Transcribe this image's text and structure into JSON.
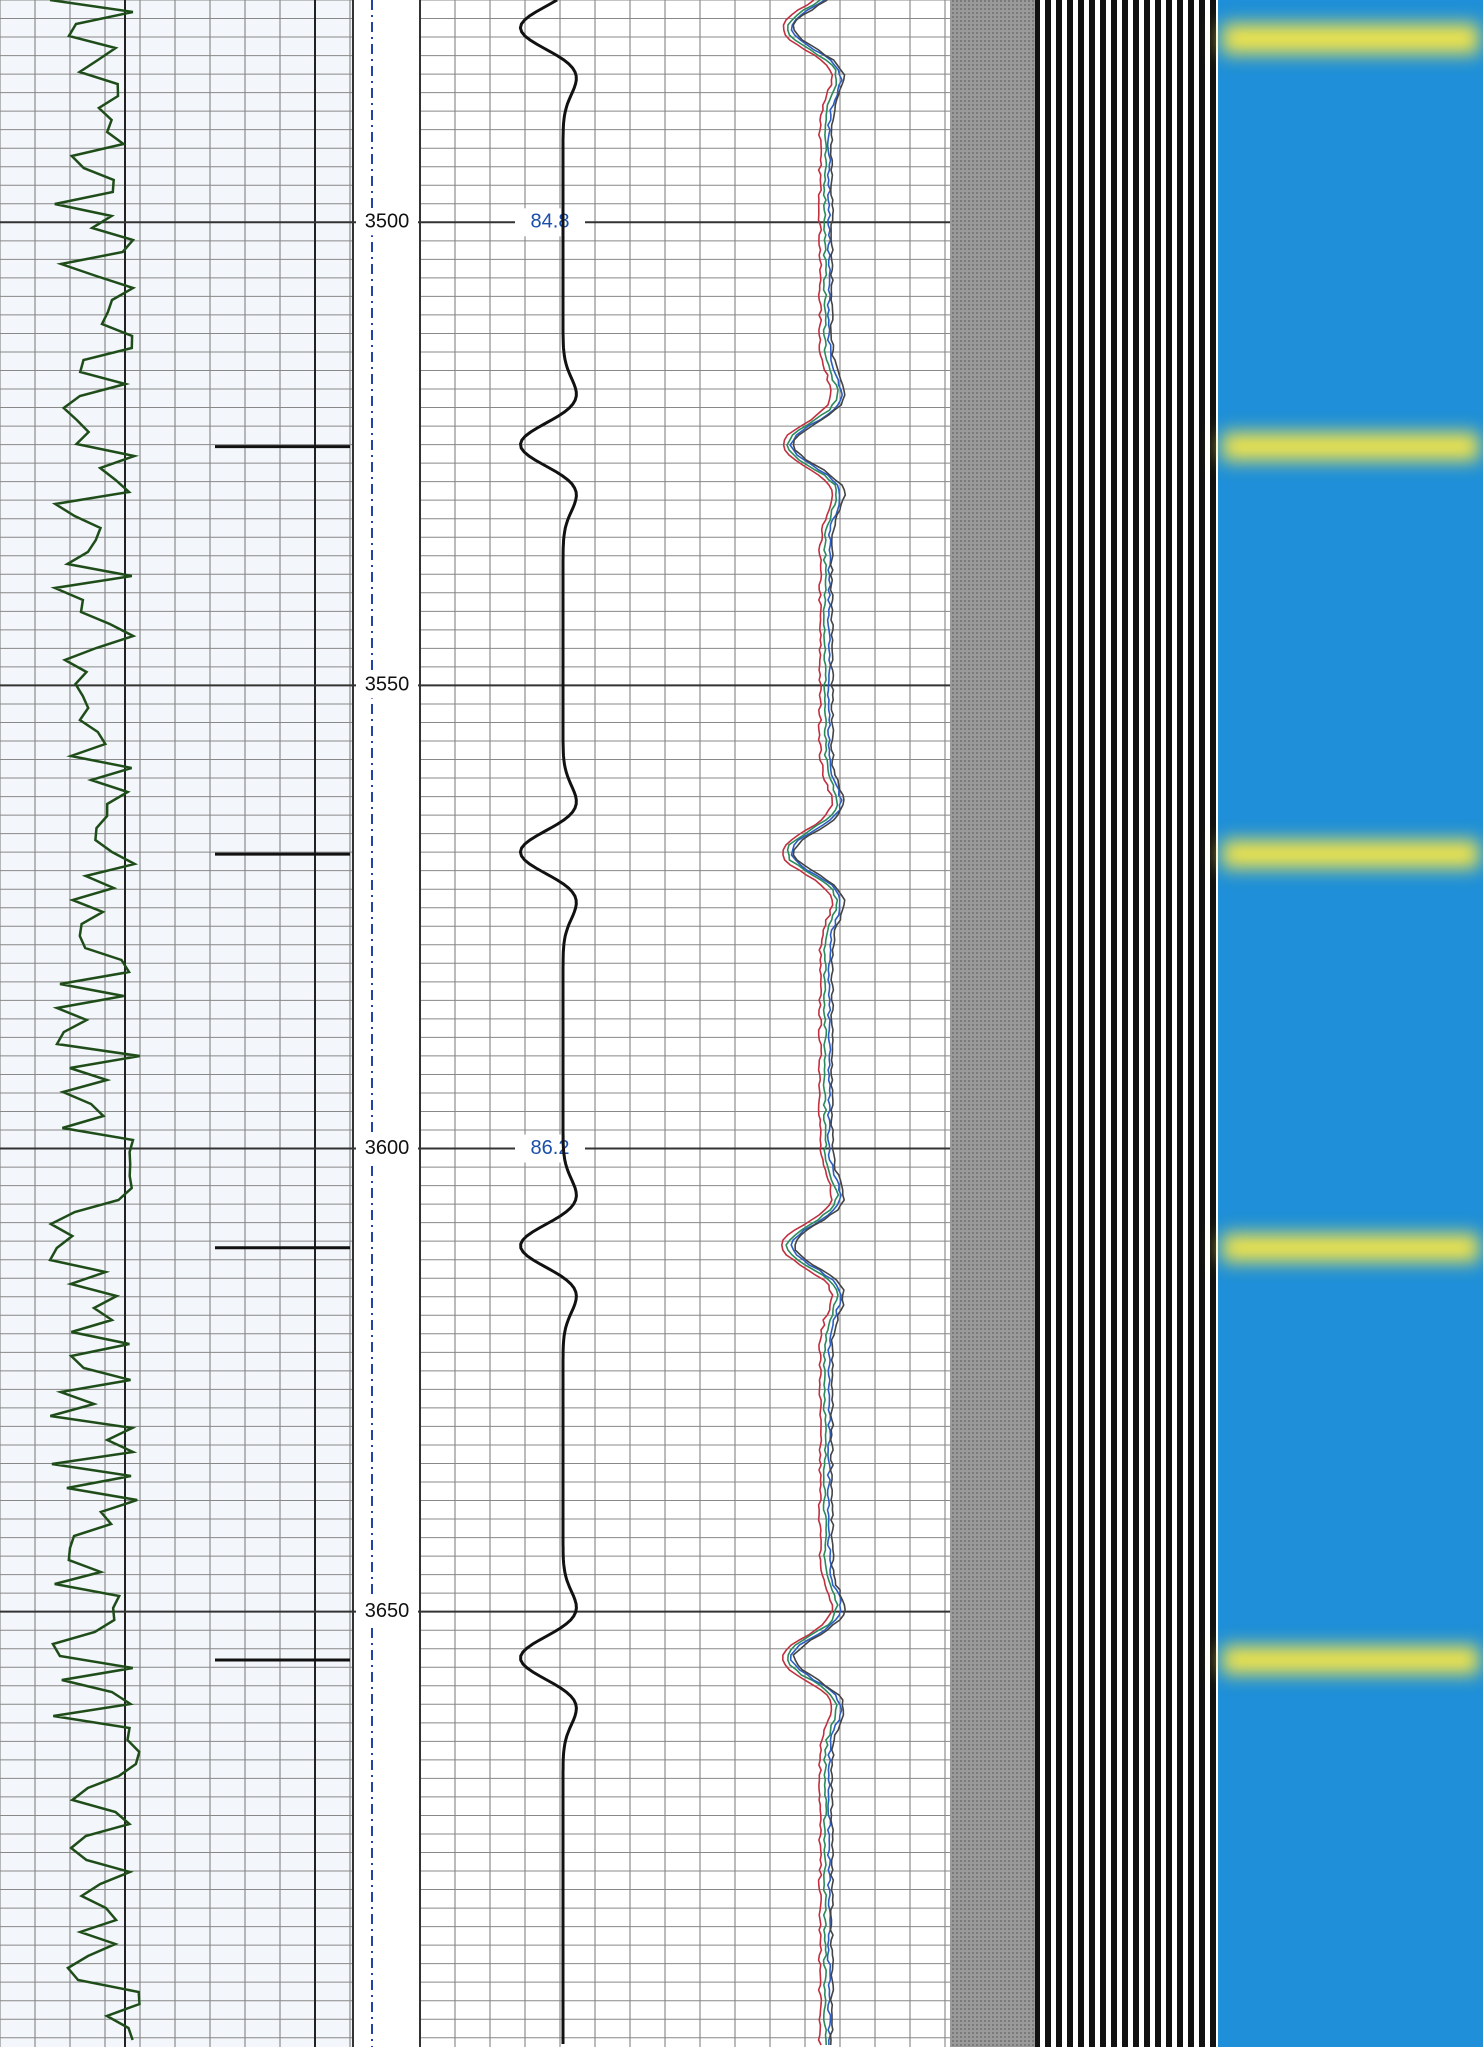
{
  "chart_data": {
    "type": "well-log",
    "ylim": [
      3476,
      3697
    ],
    "yticks": [
      3500,
      3550,
      3600,
      3650
    ],
    "annotations": [
      {
        "depth": 3500,
        "value": 84.8
      },
      {
        "depth": 3600,
        "value": 86.2
      }
    ]
  }
}
